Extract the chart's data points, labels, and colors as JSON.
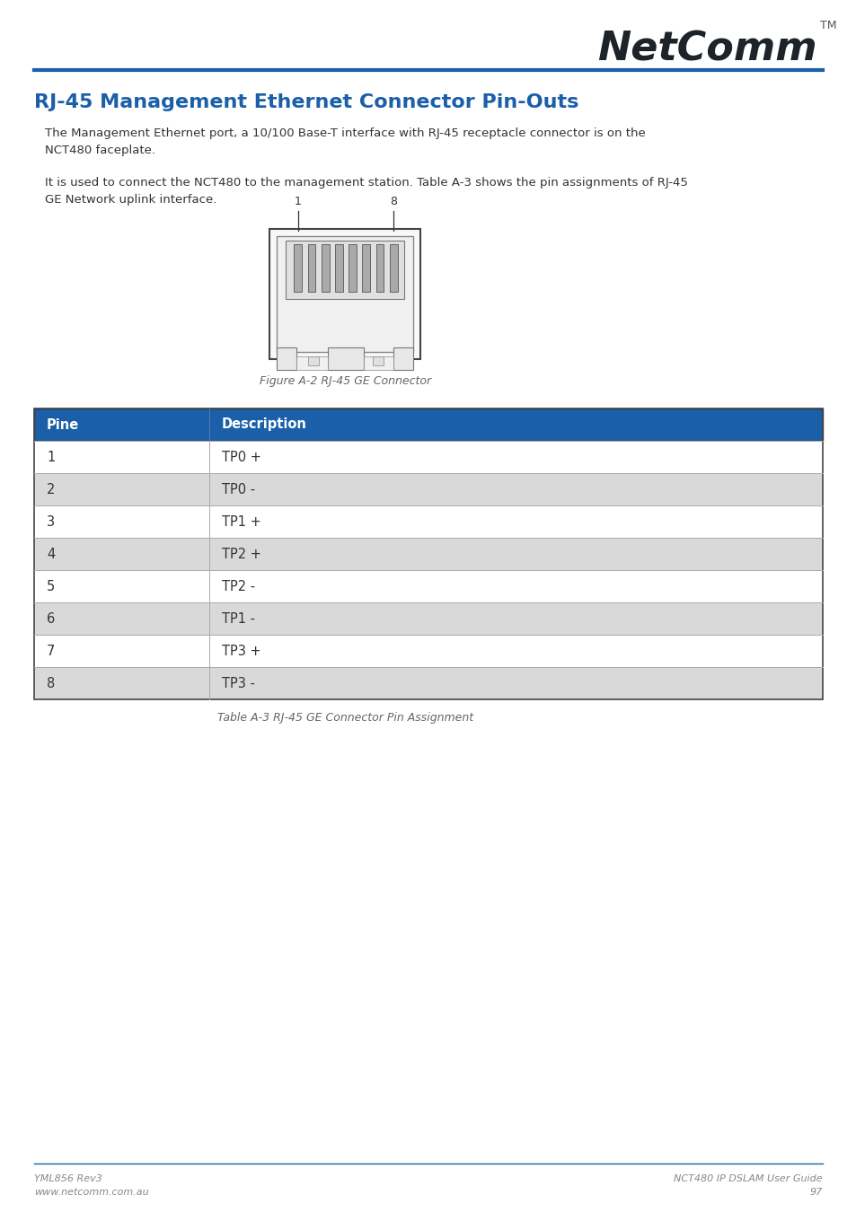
{
  "title": "RJ-45 Management Ethernet Connector Pin-Outs",
  "title_color": "#1a5fa8",
  "header_line_color": "#1a5fa8",
  "body_text_1": "The Management Ethernet port, a 10/100 Base-T interface with RJ-45 receptacle connector is on the\nNCT480 faceplate.",
  "body_text_2": "It is used to connect the NCT480 to the management station. Table A-3 shows the pin assignments of RJ-45\nGE Network uplink interface.",
  "figure_caption": "Figure A-2 RJ-45 GE Connector",
  "table_caption": "Table A-3 RJ-45 GE Connector Pin Assignment",
  "table_header": [
    "Pine",
    "Description"
  ],
  "table_header_bg": "#1a5fa8",
  "table_header_color": "#ffffff",
  "table_rows": [
    [
      "1",
      "TP0 +"
    ],
    [
      "2",
      "TP0 -"
    ],
    [
      "3",
      "TP1 +"
    ],
    [
      "4",
      "TP2 +"
    ],
    [
      "5",
      "TP2 -"
    ],
    [
      "6",
      "TP1 -"
    ],
    [
      "7",
      "TP3 +"
    ],
    [
      "8",
      "TP3 -"
    ]
  ],
  "table_row_colors": [
    "#ffffff",
    "#d9d9d9",
    "#ffffff",
    "#d9d9d9",
    "#ffffff",
    "#d9d9d9",
    "#ffffff",
    "#d9d9d9"
  ],
  "footer_left_1": "YML856 Rev3",
  "footer_left_2": "www.netcomm.com.au",
  "footer_right_1": "NCT480 IP DSLAM User Guide",
  "footer_right_2": "97",
  "footer_line_color": "#1a5fa8",
  "footer_text_color": "#888888",
  "background_color": "#ffffff",
  "text_color": "#333333",
  "body_font_size": 9.5,
  "title_font_size": 16,
  "logo_text": "NetComm",
  "logo_tm": "TM",
  "logo_color": "#1e2329",
  "pin_label_1": "1",
  "pin_label_8": "8"
}
